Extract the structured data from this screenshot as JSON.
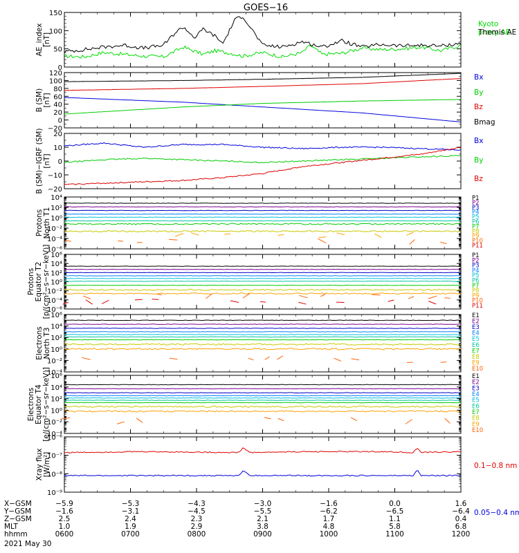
{
  "title": "GOES−16",
  "chart_data": [
    {
      "type": "line",
      "id": "ae",
      "ylabel": "AE_index\n[nT]",
      "ylim": [
        0,
        150
      ],
      "yscale": "linear",
      "yticks": [
        "0",
        "50",
        "100",
        "150"
      ],
      "yminor": 5,
      "series": [
        {
          "name": "Kyoto\nproxy AE",
          "color": "#00dd00",
          "x": [
            0,
            0.05,
            0.1,
            0.15,
            0.2,
            0.25,
            0.3,
            0.35,
            0.38,
            0.42,
            0.45,
            0.5,
            0.55,
            0.6,
            0.62,
            0.65,
            0.7,
            0.75,
            0.8,
            0.85,
            0.9,
            0.95,
            1
          ],
          "y": [
            30,
            28,
            40,
            35,
            30,
            28,
            55,
            35,
            45,
            38,
            30,
            40,
            28,
            40,
            60,
            35,
            38,
            52,
            48,
            50,
            55,
            45,
            60
          ]
        },
        {
          "name": "Themis AE",
          "color": "#000000",
          "x": [
            0,
            0.05,
            0.1,
            0.15,
            0.2,
            0.25,
            0.28,
            0.3,
            0.33,
            0.35,
            0.38,
            0.4,
            0.43,
            0.45,
            0.5,
            0.55,
            0.6,
            0.65,
            0.7,
            0.75,
            0.8,
            0.85,
            0.9,
            0.95,
            1
          ],
          "y": [
            42,
            48,
            55,
            60,
            52,
            60,
            95,
            110,
            80,
            105,
            85,
            65,
            130,
            140,
            60,
            55,
            70,
            55,
            72,
            55,
            62,
            58,
            60,
            58,
            65
          ]
        }
      ]
    },
    {
      "type": "line",
      "id": "bsm",
      "ylabel": "B (SM)\n[nT]",
      "ylim": [
        -20,
        120
      ],
      "yscale": "linear",
      "yticks": [
        "−20",
        "0",
        "20",
        "40",
        "60",
        "80",
        "100",
        "120"
      ],
      "yminor": 2,
      "series": [
        {
          "name": "Bx",
          "color": "#0000dd",
          "x": [
            0,
            0.3,
            0.5,
            0.75,
            1
          ],
          "y": [
            57,
            45,
            33,
            18,
            -5
          ]
        },
        {
          "name": "By",
          "color": "#00cc00",
          "x": [
            0,
            0.3,
            0.5,
            0.75,
            1
          ],
          "y": [
            15,
            33,
            42,
            48,
            52
          ]
        },
        {
          "name": "Bz",
          "color": "#dd0000",
          "x": [
            0,
            0.3,
            0.5,
            0.75,
            1
          ],
          "y": [
            75,
            80,
            85,
            92,
            105
          ]
        },
        {
          "name": "Bmag",
          "color": "#000000",
          "x": [
            0,
            0.3,
            0.5,
            0.75,
            1
          ],
          "y": [
            97,
            100,
            103,
            108,
            118
          ]
        }
      ]
    },
    {
      "type": "line",
      "id": "bigrf",
      "ylabel": "B (SM)−IGRF (SM)\n[nT]",
      "ylim": [
        -20,
        20
      ],
      "yscale": "linear",
      "yticks": [
        "−20",
        "−10",
        "0",
        "10",
        "20"
      ],
      "yminor": 2,
      "series": [
        {
          "name": "Bx",
          "color": "#0000dd",
          "x": [
            0,
            0.1,
            0.2,
            0.3,
            0.4,
            0.5,
            0.6,
            0.7,
            0.8,
            0.9,
            1
          ],
          "y": [
            11,
            13,
            10,
            12,
            12,
            10,
            9,
            10,
            10,
            9,
            8
          ]
        },
        {
          "name": "By",
          "color": "#00cc00",
          "x": [
            0,
            0.1,
            0.2,
            0.3,
            0.4,
            0.5,
            0.6,
            0.7,
            0.8,
            0.9,
            1
          ],
          "y": [
            -1,
            1,
            2,
            1,
            0,
            -1,
            0,
            1,
            2,
            3,
            4
          ]
        },
        {
          "name": "Bz",
          "color": "#dd0000",
          "x": [
            0,
            0.1,
            0.2,
            0.3,
            0.4,
            0.5,
            0.6,
            0.7,
            0.8,
            0.9,
            1
          ],
          "y": [
            -17,
            -16,
            -15,
            -14,
            -12,
            -9,
            -4,
            -1,
            2,
            5,
            10
          ]
        }
      ]
    },
    {
      "type": "line",
      "id": "pt1",
      "ylabel": "Protons\nNorth T1",
      "ylim": [
        -6,
        4
      ],
      "yscale": "log",
      "yticks": [
        "10⁻⁶",
        "10⁻⁴",
        "10⁻²",
        "10⁰",
        "10²",
        "10⁴"
      ],
      "ytickexp": [
        -6,
        -4,
        -2,
        0,
        2,
        4
      ],
      "channels": [
        "P1",
        "P2",
        "P3",
        "P4",
        "P5",
        "P6",
        "P7",
        "P8",
        "P9",
        "P10",
        "P11"
      ],
      "levels": [
        2.8,
        2.1,
        1.4,
        0.7,
        0.1,
        -0.6,
        -1.2,
        -2.6,
        -3.3,
        -4.6,
        -6.6
      ],
      "gappy_from": 8
    },
    {
      "type": "line",
      "id": "pt2",
      "ylabel": "Protons\nEquator T2\n[p/(cm²−s−sr−keV)]",
      "ylim": [
        -6,
        6
      ],
      "yscale": "log",
      "yticks": [
        "10⁻⁶",
        "10⁻⁴",
        "10⁻²",
        "10⁰",
        "10²",
        "10⁴",
        "10⁶"
      ],
      "ytickexp": [
        -6,
        -4,
        -2,
        0,
        2,
        4,
        6
      ],
      "channels": [
        "P1",
        "P2",
        "P3",
        "P4",
        "P5",
        "P6",
        "P7",
        "P8",
        "P9",
        "P10",
        "P11"
      ],
      "levels": [
        3.4,
        2.7,
        2.0,
        1.3,
        0.7,
        0.1,
        -0.8,
        -1.8,
        -2.6,
        -3.2,
        -4.4
      ],
      "gappy_from": 9
    },
    {
      "type": "line",
      "id": "et3",
      "ylabel": "Electrons\nNorth T3",
      "ylim": [
        -4,
        6
      ],
      "yscale": "log",
      "yticks": [
        "10⁻⁴",
        "10⁻²",
        "10⁰",
        "10²",
        "10⁴",
        "10⁶"
      ],
      "ytickexp": [
        -4,
        -2,
        0,
        2,
        4,
        6
      ],
      "channels": [
        "E1",
        "E2",
        "E3",
        "E4",
        "E5",
        "E6",
        "E7",
        "E8",
        "E9",
        "E10"
      ],
      "levels": [
        5.0,
        4.3,
        3.6,
        3.0,
        2.5,
        2.1,
        1.6,
        0.8,
        0.0,
        -1.8
      ],
      "gappy_from": 9
    },
    {
      "type": "line",
      "id": "et4",
      "ylabel": "Electrons\nEquator T4\n[e/(cm²−s−sr−keV)]",
      "ylim": [
        -4,
        6
      ],
      "yscale": "log",
      "yticks": [
        "10⁻⁴",
        "10⁻²",
        "10⁰",
        "10²",
        "10⁴",
        "10⁶"
      ],
      "ytickexp": [
        -4,
        -2,
        0,
        2,
        4,
        6
      ],
      "channels": [
        "E1",
        "E2",
        "E3",
        "E4",
        "E5",
        "E6",
        "E7",
        "E8",
        "E9",
        "E10"
      ],
      "levels": [
        4.4,
        3.7,
        3.0,
        2.5,
        2.1,
        1.7,
        1.3,
        0.6,
        -0.2,
        -1.8
      ],
      "gappy_from": 9
    },
    {
      "type": "line",
      "id": "xray",
      "ylabel": "Xray flux\n[W/m²]",
      "ylim": [
        -9,
        -6
      ],
      "yscale": "log",
      "yticks": [
        "10⁻⁹",
        "10⁻⁸",
        "10⁻⁷",
        "10⁻⁶"
      ],
      "ytickexp": [
        -9,
        -8,
        -7,
        -6
      ],
      "series": [
        {
          "name": "0.1−0.8 nm",
          "color": "#dd0000",
          "x": [
            0,
            0.2,
            0.44,
            0.45,
            0.47,
            0.6,
            0.8,
            0.88,
            0.89,
            0.9,
            1
          ],
          "y": [
            -6.85,
            -6.8,
            -6.85,
            -6.6,
            -6.85,
            -6.8,
            -6.8,
            -6.85,
            -6.6,
            -6.85,
            -6.8
          ]
        },
        {
          "name": "0.05−0.4 nm",
          "color": "#0000dd",
          "x": [
            0,
            0.2,
            0.44,
            0.45,
            0.47,
            0.6,
            0.8,
            0.88,
            0.89,
            0.9,
            1
          ],
          "y": [
            -8.1,
            -8.1,
            -8.1,
            -7.85,
            -8.1,
            -8.1,
            -8.1,
            -8.1,
            -7.8,
            -8.1,
            -8.1
          ]
        }
      ]
    }
  ],
  "xaxis": {
    "labels": [
      "X−GSM",
      "Y−GSM",
      "Z−GSM",
      "MLT",
      "hhmm"
    ],
    "date": "2021 May 30",
    "columns": [
      [
        "−5.9",
        "−1.6",
        "2.5",
        "1.0",
        "0600"
      ],
      [
        "−5.3",
        "−3.1",
        "2.4",
        "1.9",
        "0700"
      ],
      [
        "−4.3",
        "−4.5",
        "2.3",
        "2.9",
        "0800"
      ],
      [
        "−3.0",
        "−5.5",
        "2.1",
        "3.8",
        "0900"
      ],
      [
        "−1.6",
        "−6.2",
        "1.7",
        "4.8",
        "1000"
      ],
      [
        "0.0",
        "−6.5",
        "1.1",
        "5.8",
        "1100"
      ],
      [
        "1.6",
        "−6.4",
        "0.4",
        "6.8",
        "1200"
      ]
    ]
  },
  "channel_colors": [
    "#000000",
    "#7a0090",
    "#0000cc",
    "#0080ff",
    "#00c0e0",
    "#00c8a0",
    "#00cc00",
    "#c8c800",
    "#ffa000",
    "#ff6000",
    "#dd0000"
  ]
}
